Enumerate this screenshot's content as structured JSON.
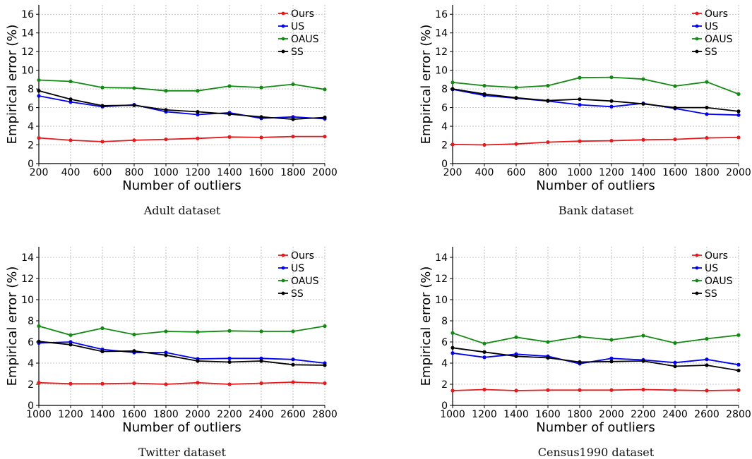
{
  "series_colors": {
    "Ours": "#e41a1c",
    "US": "#0000ee",
    "OAUS": "#138a13",
    "SS": "#000000"
  },
  "chart_data": [
    {
      "type": "line",
      "caption": "Adult dataset",
      "xlabel": "Number of outliers",
      "ylabel": "Empirical error (%)",
      "x": [
        200,
        400,
        600,
        800,
        1000,
        1200,
        1400,
        1600,
        1800,
        2000
      ],
      "xlim": [
        200,
        2000
      ],
      "ylim": [
        0,
        17
      ],
      "yticks": [
        0,
        2,
        4,
        6,
        8,
        10,
        12,
        14,
        16
      ],
      "grid": true,
      "legend": "top-right",
      "series": [
        {
          "name": "Ours",
          "values": [
            2.75,
            2.5,
            2.35,
            2.5,
            2.6,
            2.7,
            2.85,
            2.8,
            2.9,
            2.9
          ]
        },
        {
          "name": "US",
          "values": [
            7.25,
            6.6,
            6.1,
            6.3,
            5.55,
            5.25,
            5.45,
            4.85,
            5.0,
            4.8
          ]
        },
        {
          "name": "OAUS",
          "values": [
            8.95,
            8.8,
            8.15,
            8.1,
            7.8,
            7.8,
            8.3,
            8.15,
            8.5,
            7.95
          ]
        },
        {
          "name": "SS",
          "values": [
            7.8,
            6.9,
            6.2,
            6.25,
            5.75,
            5.55,
            5.3,
            5.0,
            4.75,
            4.95
          ]
        }
      ]
    },
    {
      "type": "line",
      "caption": "Bank dataset",
      "xlabel": "Number of outliers",
      "ylabel": "Empirical error (%)",
      "x": [
        200,
        400,
        600,
        800,
        1000,
        1200,
        1400,
        1600,
        1800,
        2000
      ],
      "xlim": [
        200,
        2000
      ],
      "ylim": [
        0,
        17
      ],
      "yticks": [
        0,
        2,
        4,
        6,
        8,
        10,
        12,
        14,
        16
      ],
      "grid": true,
      "legend": "top-right",
      "series": [
        {
          "name": "Ours",
          "values": [
            2.05,
            2.0,
            2.1,
            2.3,
            2.4,
            2.45,
            2.55,
            2.6,
            2.75,
            2.8
          ]
        },
        {
          "name": "US",
          "values": [
            7.95,
            7.3,
            7.0,
            6.7,
            6.3,
            6.1,
            6.45,
            5.9,
            5.3,
            5.2
          ]
        },
        {
          "name": "OAUS",
          "values": [
            8.7,
            8.35,
            8.15,
            8.35,
            9.2,
            9.25,
            9.05,
            8.3,
            8.75,
            7.45
          ]
        },
        {
          "name": "SS",
          "values": [
            8.0,
            7.45,
            7.05,
            6.75,
            6.9,
            6.7,
            6.4,
            6.0,
            6.0,
            5.6
          ]
        }
      ]
    },
    {
      "type": "line",
      "caption": "Twitter dataset",
      "xlabel": "Number of outliers",
      "ylabel": "Empirical error (%)",
      "x": [
        1000,
        1200,
        1400,
        1600,
        1800,
        2000,
        2200,
        2400,
        2600,
        2800
      ],
      "xlim": [
        1000,
        2800
      ],
      "ylim": [
        0,
        15
      ],
      "yticks": [
        0,
        2,
        4,
        6,
        8,
        10,
        12,
        14
      ],
      "grid": true,
      "legend": "top-right",
      "series": [
        {
          "name": "Ours",
          "values": [
            2.15,
            2.05,
            2.05,
            2.1,
            2.0,
            2.15,
            2.0,
            2.1,
            2.2,
            2.1
          ]
        },
        {
          "name": "US",
          "values": [
            5.9,
            6.0,
            5.3,
            5.0,
            5.0,
            4.4,
            4.45,
            4.45,
            4.35,
            4.0
          ]
        },
        {
          "name": "OAUS",
          "values": [
            7.5,
            6.65,
            7.3,
            6.7,
            7.0,
            6.95,
            7.05,
            7.0,
            7.0,
            7.5
          ]
        },
        {
          "name": "SS",
          "values": [
            6.05,
            5.75,
            5.1,
            5.15,
            4.75,
            4.2,
            4.1,
            4.2,
            3.85,
            3.8
          ]
        }
      ]
    },
    {
      "type": "line",
      "caption": "Census1990 dataset",
      "xlabel": "Number of outliers",
      "ylabel": "Empirical error (%)",
      "x": [
        1000,
        1200,
        1400,
        1600,
        1800,
        2000,
        2200,
        2400,
        2600,
        2800
      ],
      "xlim": [
        1000,
        2800
      ],
      "ylim": [
        0,
        15
      ],
      "yticks": [
        0,
        2,
        4,
        6,
        8,
        10,
        12,
        14
      ],
      "grid": true,
      "legend": "top-right",
      "series": [
        {
          "name": "Ours",
          "values": [
            1.4,
            1.5,
            1.4,
            1.45,
            1.45,
            1.45,
            1.5,
            1.45,
            1.4,
            1.45
          ]
        },
        {
          "name": "US",
          "values": [
            4.95,
            4.55,
            4.85,
            4.65,
            3.95,
            4.45,
            4.3,
            4.05,
            4.35,
            3.85
          ]
        },
        {
          "name": "OAUS",
          "values": [
            6.85,
            5.85,
            6.45,
            6.0,
            6.5,
            6.2,
            6.6,
            5.9,
            6.3,
            6.65
          ]
        },
        {
          "name": "SS",
          "values": [
            5.45,
            5.05,
            4.65,
            4.5,
            4.1,
            4.15,
            4.2,
            3.7,
            3.8,
            3.3
          ]
        }
      ]
    }
  ]
}
